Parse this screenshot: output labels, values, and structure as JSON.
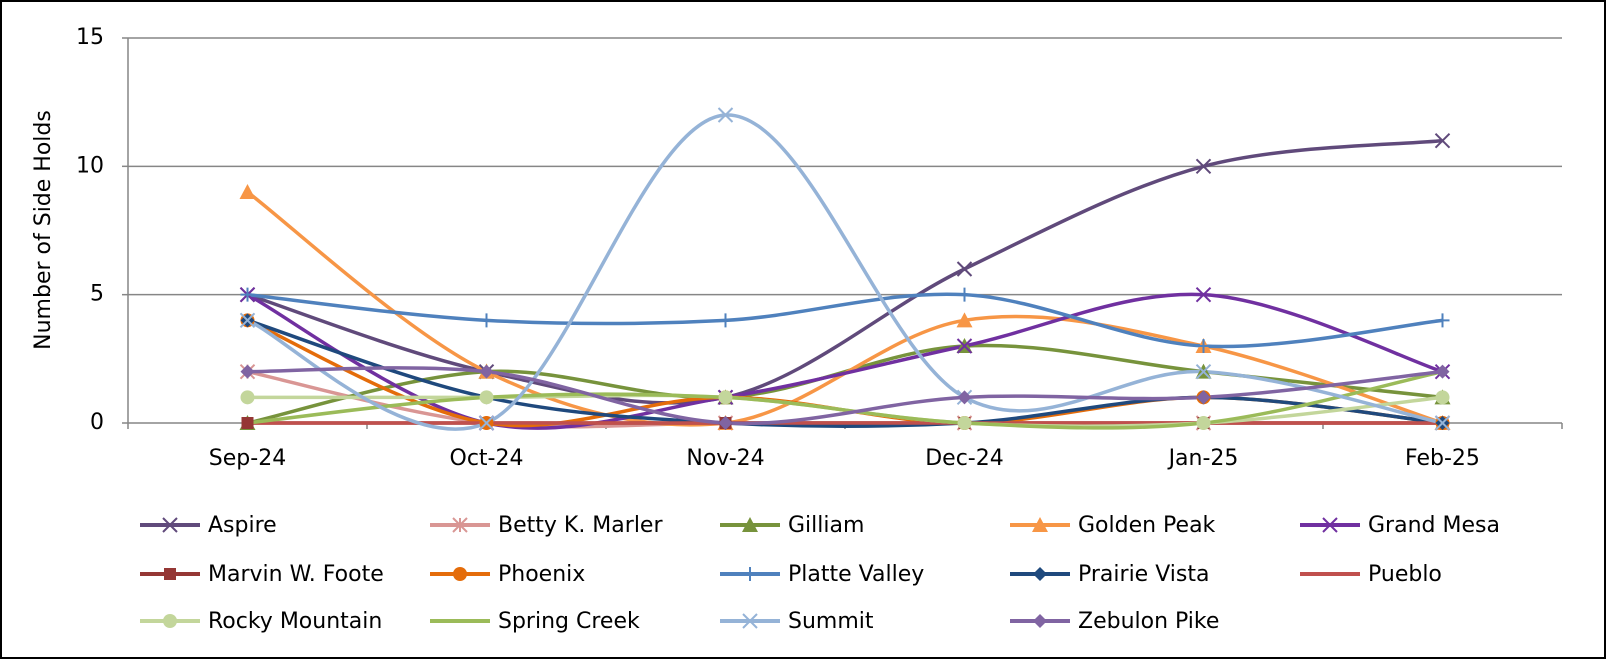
{
  "chart_data": {
    "type": "line",
    "smooth": true,
    "y_label": "Number of Side Holds",
    "categories": [
      "Sep-24",
      "Oct-24",
      "Nov-24",
      "Dec-24",
      "Jan-25",
      "Feb-25"
    ],
    "ylim": [
      0,
      15
    ],
    "yticks": [
      0,
      5,
      10,
      15
    ],
    "grid": true,
    "series": [
      {
        "name": "Aspire",
        "color": "#604a7b",
        "marker": "x",
        "values": [
          5,
          2,
          1,
          6,
          10,
          11
        ]
      },
      {
        "name": "Betty K. Marler",
        "color": "#d99694",
        "marker": "star",
        "values": [
          2,
          0,
          0,
          0,
          0,
          0
        ]
      },
      {
        "name": "Gilliam",
        "color": "#77933c",
        "marker": "triangle",
        "values": [
          0,
          2,
          1,
          3,
          2,
          1
        ]
      },
      {
        "name": "Golden Peak",
        "color": "#f79646",
        "marker": "triangle",
        "values": [
          9,
          2,
          0,
          4,
          3,
          0
        ]
      },
      {
        "name": "Grand Mesa",
        "color": "#7030a0",
        "marker": "x",
        "values": [
          5,
          0,
          1,
          3,
          5,
          2
        ]
      },
      {
        "name": "Marvin W. Foote",
        "color": "#953735",
        "marker": "square",
        "values": [
          0,
          0,
          0,
          0,
          0,
          0
        ]
      },
      {
        "name": "Phoenix",
        "color": "#e46c0a",
        "marker": "circle",
        "values": [
          4,
          0,
          1,
          0,
          1,
          0
        ]
      },
      {
        "name": "Platte Valley",
        "color": "#4f81bd",
        "marker": "plus",
        "values": [
          5,
          4,
          4,
          5,
          3,
          4
        ]
      },
      {
        "name": "Prairie Vista",
        "color": "#1f497d",
        "marker": "diamond",
        "values": [
          4,
          1,
          0,
          0,
          1,
          0
        ]
      },
      {
        "name": "Pueblo",
        "color": "#c0504d",
        "marker": "none",
        "values": [
          0,
          0,
          0,
          0,
          0,
          0
        ]
      },
      {
        "name": "Rocky Mountain",
        "color": "#c3d69b",
        "marker": "circle",
        "values": [
          1,
          1,
          1,
          0,
          0,
          1
        ]
      },
      {
        "name": "Spring Creek",
        "color": "#9bbb59",
        "marker": "none",
        "values": [
          0,
          1,
          1,
          0,
          0,
          2
        ]
      },
      {
        "name": "Summit",
        "color": "#95b3d7",
        "marker": "x",
        "values": [
          4,
          0,
          12,
          1,
          2,
          0
        ]
      },
      {
        "name": "Zebulon Pike",
        "color": "#8064a2",
        "marker": "diamond",
        "values": [
          2,
          2,
          0,
          1,
          1,
          2
        ]
      }
    ]
  }
}
